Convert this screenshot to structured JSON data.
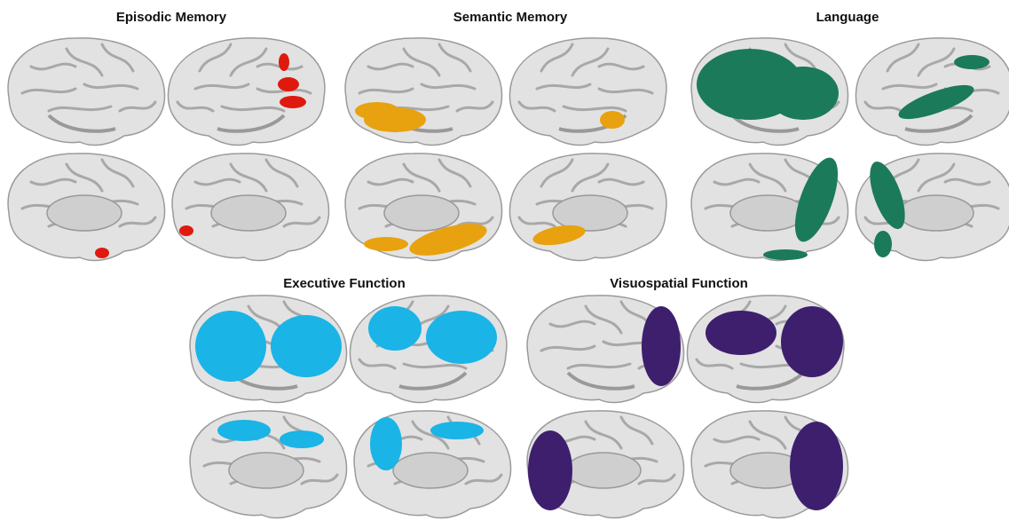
{
  "panels": [
    {
      "title": "Episodic Memory"
    },
    {
      "title": "Semantic Memory"
    },
    {
      "title": "Language"
    },
    {
      "title": "Executive Function"
    },
    {
      "title": "Visuospatial Function"
    }
  ]
}
